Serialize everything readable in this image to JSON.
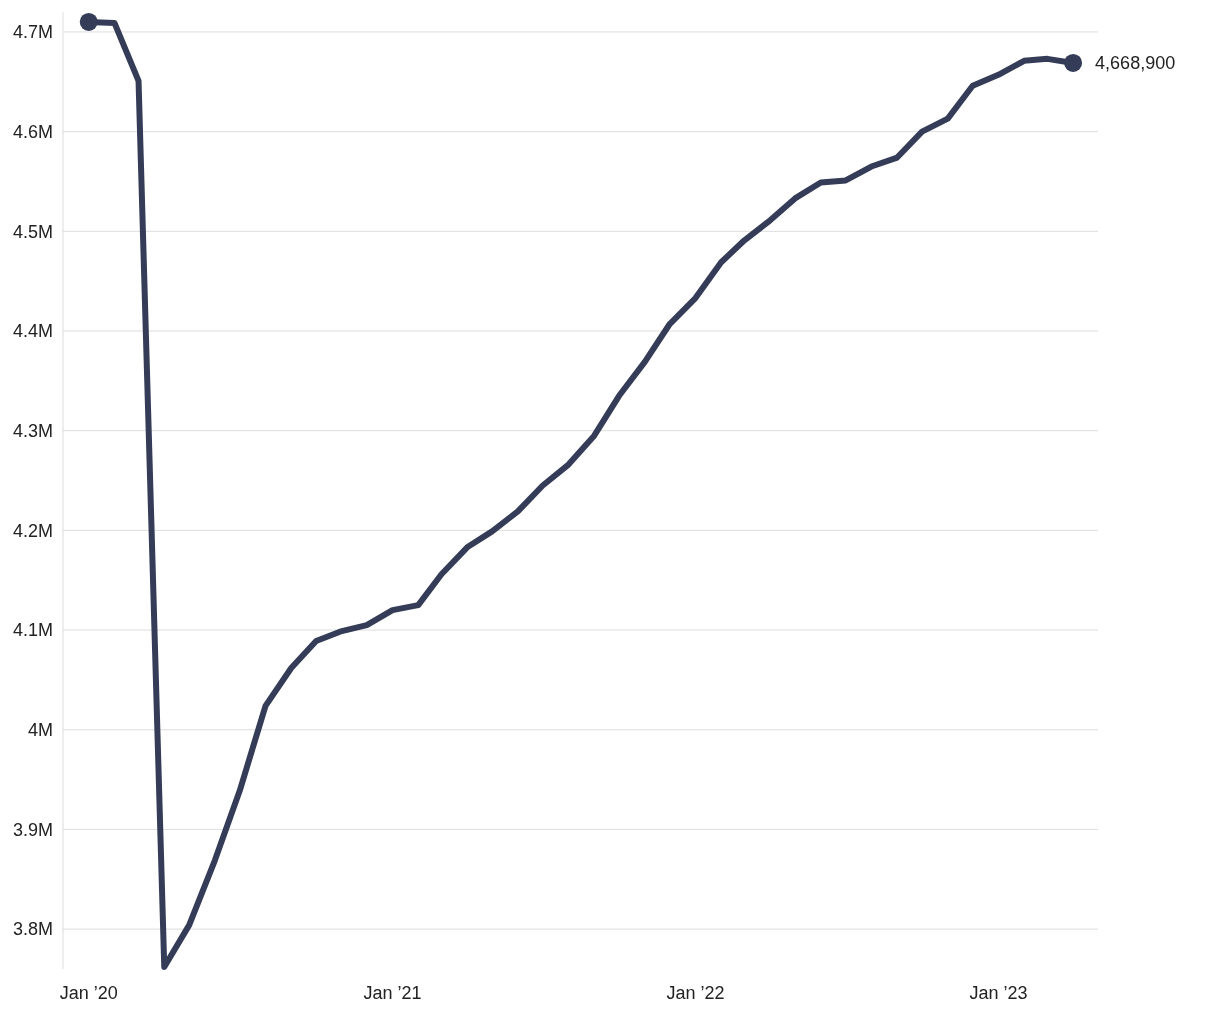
{
  "chart_data": {
    "type": "line",
    "x": [
      "2020-01",
      "2020-02",
      "2020-03",
      "2020-04",
      "2020-05",
      "2020-06",
      "2020-07",
      "2020-08",
      "2020-09",
      "2020-10",
      "2020-11",
      "2020-12",
      "2021-01",
      "2021-02",
      "2021-03",
      "2021-04",
      "2021-05",
      "2021-06",
      "2021-07",
      "2021-08",
      "2021-09",
      "2021-10",
      "2021-11",
      "2021-12",
      "2022-01",
      "2022-02",
      "2022-03",
      "2022-04",
      "2022-05",
      "2022-06",
      "2022-07",
      "2022-08",
      "2022-09",
      "2022-10",
      "2022-11",
      "2022-12",
      "2023-01",
      "2023-02",
      "2023-03",
      "2023-04"
    ],
    "series": [
      {
        "color": "#343c58",
        "values": [
          4710000,
          4709000,
          4651000,
          3762000,
          3804000,
          3869000,
          3939000,
          4024000,
          4062000,
          4089000,
          4099000,
          4105000,
          4120000,
          4125000,
          4156000,
          4183000,
          4199000,
          4219000,
          4245000,
          4266000,
          4295000,
          4335000,
          4369000,
          4407000,
          4433000,
          4469000,
          4491000,
          4511000,
          4533000,
          4549000,
          4551000,
          4565000,
          4574000,
          4600000,
          4613000,
          4646000,
          4657000,
          4671000,
          4673000,
          4668900
        ]
      }
    ],
    "xlim": [
      "2019-12",
      "2023-05"
    ],
    "xticks": [
      {
        "value": "2020-01",
        "label": "Jan ’20"
      },
      {
        "value": "2021-01",
        "label": "Jan ’21"
      },
      {
        "value": "2022-01",
        "label": "Jan ’22"
      },
      {
        "value": "2023-01",
        "label": "Jan ’23"
      }
    ],
    "ylim": [
      3760000,
      4720000
    ],
    "yticks": [
      {
        "value": 3800000,
        "label": "3.8M"
      },
      {
        "value": 3900000,
        "label": "3.9M"
      },
      {
        "value": 4000000,
        "label": "4M"
      },
      {
        "value": 4100000,
        "label": "4.1M"
      },
      {
        "value": 4200000,
        "label": "4.2M"
      },
      {
        "value": 4300000,
        "label": "4.3M"
      },
      {
        "value": 4400000,
        "label": "4.4M"
      },
      {
        "value": 4500000,
        "label": "4.5M"
      },
      {
        "value": 4600000,
        "label": "4.6M"
      },
      {
        "value": 4700000,
        "label": "4.7M"
      }
    ],
    "grid": "y",
    "annotations": [
      {
        "text": "4,668,900",
        "x": "2023-04",
        "y": 4668900
      }
    ]
  }
}
